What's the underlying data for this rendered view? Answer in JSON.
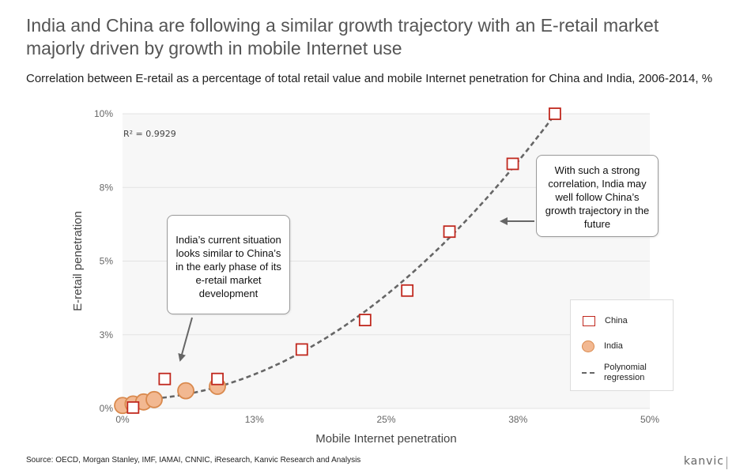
{
  "title": "India and China are following a similar growth trajectory with an E-retail market majorly driven by growth in mobile Internet use",
  "subtitle": "Correlation between E-retail as a percentage of total retail value and mobile Internet penetration for China and India, 2006-2014, %",
  "source": "Source: OECD, Morgan Stanley, IMF, IAMAI, CNNIC, iResearch, Kanvic Research and Analysis",
  "brand": "kanvic",
  "r_squared": "R² = 0.9929",
  "callouts": {
    "india": "India’s current situation looks similar to China’s in the early phase of its e-retail market development",
    "china": "With such a strong correlation, India may well follow China’s growth trajectory in the future"
  },
  "legend": {
    "china": "China",
    "india": "India",
    "regression": "Polynomial regression"
  },
  "colors": {
    "china_stroke": "#c0281e",
    "india_fill": "#f2b891",
    "india_stroke": "#d9894d",
    "regression": "#666666",
    "plot_bg": "#f7f7f7",
    "grid": "#e3e3e3"
  },
  "chart_data": {
    "type": "scatter",
    "xlabel": "Mobile Internet penetration",
    "ylabel": "E-retail penetration",
    "xlim": [
      0,
      50
    ],
    "ylim": [
      0,
      10
    ],
    "x_ticks": [
      {
        "value": 0,
        "label": "0%"
      },
      {
        "value": 12.5,
        "label": "13%"
      },
      {
        "value": 25,
        "label": "25%"
      },
      {
        "value": 37.5,
        "label": "38%"
      },
      {
        "value": 50,
        "label": "50%"
      }
    ],
    "y_ticks": [
      {
        "value": 0,
        "label": "0%"
      },
      {
        "value": 2.5,
        "label": "3%"
      },
      {
        "value": 5,
        "label": "5%"
      },
      {
        "value": 7.5,
        "label": "8%"
      },
      {
        "value": 10,
        "label": "10%"
      }
    ],
    "grid": true,
    "legend_position": "bottom-right",
    "series": [
      {
        "name": "China",
        "marker": "square",
        "points": [
          {
            "x": 1.0,
            "y": 0.03
          },
          {
            "x": 4.0,
            "y": 1.0
          },
          {
            "x": 9.0,
            "y": 1.0
          },
          {
            "x": 17.0,
            "y": 2.0
          },
          {
            "x": 23.0,
            "y": 3.0
          },
          {
            "x": 27.0,
            "y": 4.0
          },
          {
            "x": 31.0,
            "y": 6.0
          },
          {
            "x": 37.0,
            "y": 8.3
          },
          {
            "x": 41.0,
            "y": 10.0
          }
        ]
      },
      {
        "name": "India",
        "marker": "circle",
        "points": [
          {
            "x": 0.0,
            "y": 0.1
          },
          {
            "x": 1.0,
            "y": 0.15
          },
          {
            "x": 2.0,
            "y": 0.22
          },
          {
            "x": 3.0,
            "y": 0.3
          },
          {
            "x": 6.0,
            "y": 0.6
          },
          {
            "x": 9.0,
            "y": 0.75
          }
        ]
      }
    ],
    "regression": {
      "name": "Polynomial regression",
      "type": "polynomial",
      "r_squared": "R² = 0.9929"
    }
  }
}
